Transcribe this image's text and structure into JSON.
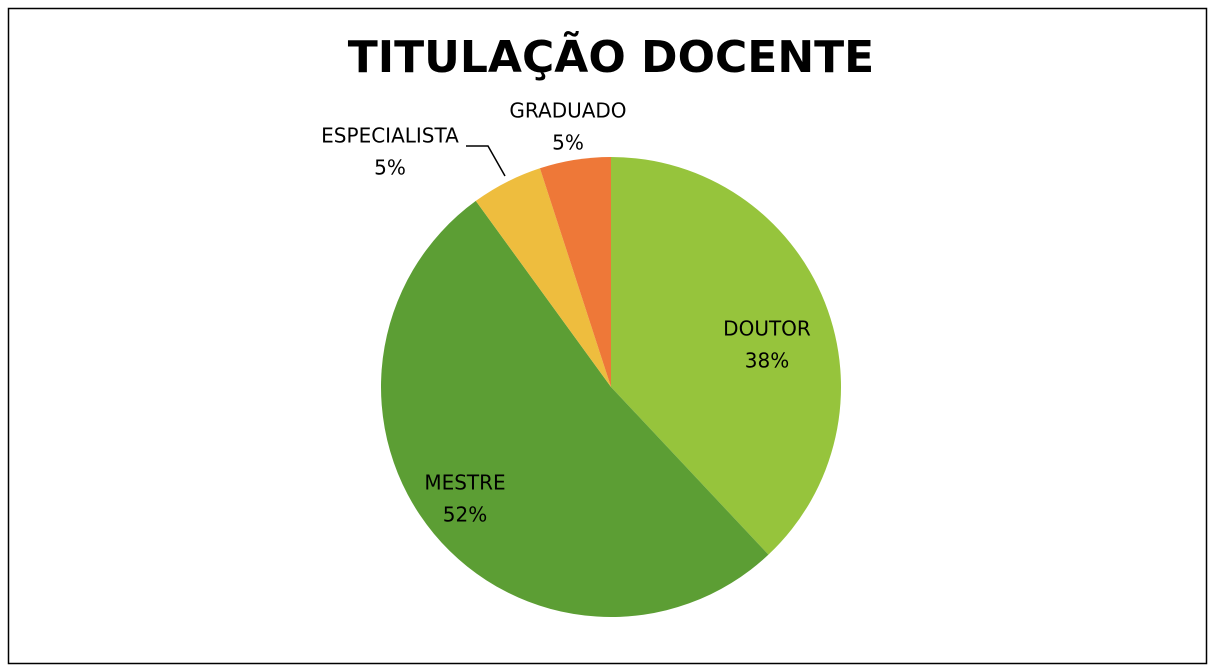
{
  "chart_data": {
    "type": "pie",
    "title": "TITULAÇÃO DOCENTE",
    "categories": [
      "DOUTOR",
      "MESTRE",
      "ESPECIALISTA",
      "GRADUADO"
    ],
    "values": [
      38,
      52,
      5,
      5
    ],
    "value_labels": [
      "38%",
      "52%",
      "5%",
      "5%"
    ],
    "colors": [
      "#96c43c",
      "#5c9e34",
      "#eebd3e",
      "#ee7838"
    ]
  }
}
